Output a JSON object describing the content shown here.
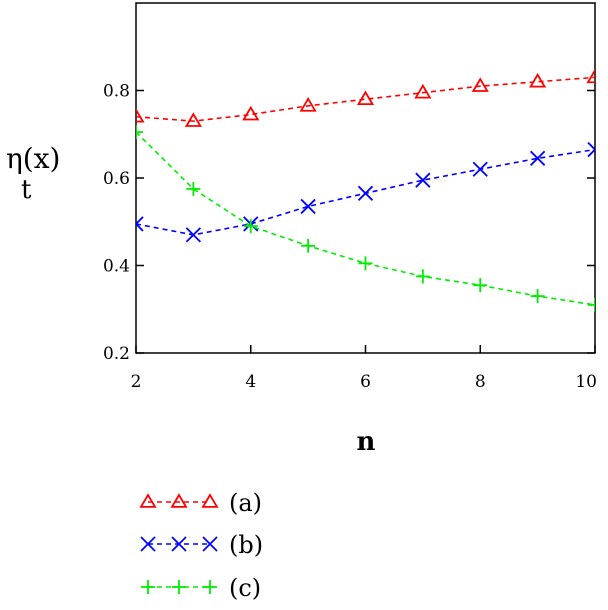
{
  "chart_data": {
    "type": "line",
    "xlabel": "n",
    "ylabel_main": "η(x)",
    "ylabel_sub": "t",
    "xlim": [
      2,
      10
    ],
    "ylim": [
      0.2,
      1.0
    ],
    "xticks": [
      2,
      4,
      6,
      8,
      10
    ],
    "yticks": [
      0.2,
      0.4,
      0.6,
      0.8
    ],
    "xtick_labels": [
      "2",
      "4",
      "6",
      "8",
      "10"
    ],
    "ytick_labels": [
      "0.2",
      "0.4",
      "0.6",
      "0.8"
    ],
    "grid": false,
    "legend_position": "bottom-left",
    "x": [
      2,
      3,
      4,
      5,
      6,
      7,
      8,
      9,
      10
    ],
    "series": [
      {
        "name": "(a)",
        "color": "#ff0000",
        "marker": "triangle",
        "values": [
          0.74,
          0.73,
          0.745,
          0.765,
          0.78,
          0.795,
          0.81,
          0.82,
          0.83
        ]
      },
      {
        "name": "(b)",
        "color": "#0000ff",
        "marker": "x",
        "values": [
          0.495,
          0.47,
          0.495,
          0.535,
          0.565,
          0.595,
          0.62,
          0.645,
          0.665
        ]
      },
      {
        "name": "(c)",
        "color": "#00ee00",
        "marker": "plus",
        "values": [
          0.705,
          0.575,
          0.49,
          0.445,
          0.405,
          0.375,
          0.355,
          0.33,
          0.31
        ]
      }
    ]
  }
}
